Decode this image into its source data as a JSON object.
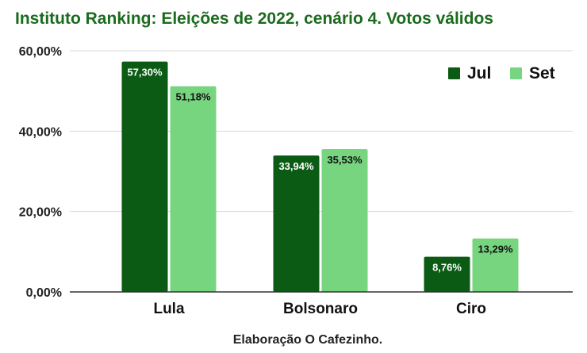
{
  "chart_data": {
    "type": "bar",
    "title": "Instituto Ranking: Eleições de 2022, cenário 4. Votos válidos",
    "caption": "Elaboração O Cafezinho.",
    "categories": [
      "Lula",
      "Bolsonaro",
      "Ciro"
    ],
    "series": [
      {
        "name": "Jul",
        "values": [
          57.3,
          33.94,
          8.76
        ],
        "labels": [
          "57,30%",
          "33,94%",
          "8,76%"
        ],
        "color": "#0b5b14",
        "label_color": "#ffffff"
      },
      {
        "name": "Set",
        "values": [
          51.18,
          35.53,
          13.29
        ],
        "labels": [
          "51,18%",
          "35,53%",
          "13,29%"
        ],
        "color": "#77d47f",
        "label_color": "#111111"
      }
    ],
    "ylim": [
      0,
      60
    ],
    "yticks": [
      0,
      20,
      40,
      60
    ],
    "ytick_labels": [
      "0,00%",
      "20,00%",
      "40,00%",
      "60,00%"
    ],
    "grid": true,
    "legend_position": "top-right"
  }
}
